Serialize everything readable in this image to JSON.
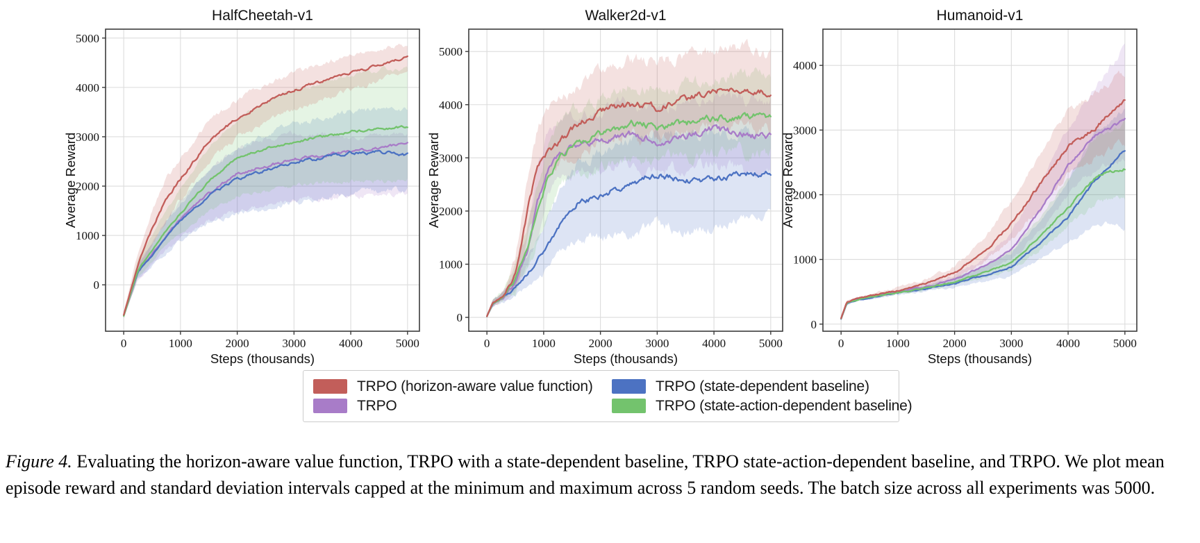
{
  "caption": {
    "label": "Figure 4.",
    "text": " Evaluating the horizon-aware value function, TRPO with a state-dependent baseline, TRPO state-action-dependent baseline, and TRPO. We plot mean episode reward and standard deviation intervals capped at the minimum and maximum across 5 random seeds. The batch size across all experiments was 5000."
  },
  "legend": {
    "items": [
      {
        "id": "trpo-horizon-aware",
        "label": "TRPO (horizon-aware value function)",
        "color": "#C25E5A"
      },
      {
        "id": "trpo-state-dependent",
        "label": "TRPO (state-dependent baseline)",
        "color": "#4C72C2"
      },
      {
        "id": "trpo",
        "label": "TRPO",
        "color": "#A87CC8"
      },
      {
        "id": "trpo-state-action-dependent",
        "label": "TRPO (state-action-dependent baseline)",
        "color": "#73C36D"
      }
    ]
  },
  "chart_data": [
    {
      "type": "line",
      "title": "HalfCheetah-v1",
      "xlabel": "Steps (thousands)",
      "ylabel": "Average Reward",
      "xlim": [
        -320,
        5210
      ],
      "ylim": [
        -940,
        5180
      ],
      "xticks": [
        0,
        1000,
        2000,
        3000,
        4000,
        5000
      ],
      "yticks": [
        0,
        1000,
        2000,
        3000,
        4000,
        5000
      ],
      "grid": true,
      "series": [
        {
          "id": "trpo",
          "label": "TRPO",
          "color": "#A87CC8",
          "noise": 48,
          "x": [
            0,
            250,
            500,
            750,
            1000,
            1500,
            2000,
            2500,
            3000,
            3500,
            4000,
            4500,
            5000
          ],
          "mean": [
            -620,
            280,
            620,
            1000,
            1340,
            1850,
            2250,
            2400,
            2550,
            2620,
            2700,
            2780,
            2850
          ],
          "lo": [
            -680,
            130,
            400,
            700,
            950,
            1300,
            1500,
            1600,
            1700,
            1750,
            1800,
            1820,
            1850
          ],
          "hi": [
            -560,
            450,
            850,
            1300,
            1700,
            2350,
            2750,
            2950,
            3050,
            3050,
            3000,
            3000,
            3050
          ]
        },
        {
          "id": "trpo-state-dependent",
          "label": "TRPO (state-dependent baseline)",
          "color": "#4C72C2",
          "noise": 50,
          "x": [
            0,
            250,
            500,
            750,
            1000,
            1500,
            2000,
            2500,
            3000,
            3500,
            4000,
            4500,
            5000
          ],
          "mean": [
            -620,
            270,
            600,
            950,
            1300,
            1800,
            2150,
            2330,
            2470,
            2580,
            2660,
            2690,
            2630
          ],
          "lo": [
            -680,
            120,
            380,
            650,
            900,
            1250,
            1450,
            1550,
            1650,
            1750,
            1850,
            1900,
            1950
          ],
          "hi": [
            -560,
            430,
            820,
            1250,
            1650,
            2300,
            2750,
            3050,
            3250,
            3400,
            3500,
            3550,
            3550
          ]
        },
        {
          "id": "trpo-state-action-dependent",
          "label": "TRPO (state-action-dependent baseline)",
          "color": "#73C36D",
          "noise": 42,
          "x": [
            0,
            250,
            500,
            750,
            1000,
            1500,
            2000,
            2500,
            3000,
            3500,
            4000,
            4500,
            5000
          ],
          "mean": [
            -630,
            300,
            700,
            1100,
            1450,
            2100,
            2580,
            2750,
            2900,
            3000,
            3100,
            3150,
            3200
          ],
          "lo": [
            -690,
            150,
            450,
            800,
            1050,
            1500,
            1800,
            1900,
            2000,
            2050,
            2100,
            2100,
            2150
          ],
          "hi": [
            -570,
            500,
            1000,
            1500,
            1950,
            2800,
            3350,
            3700,
            3950,
            4100,
            4250,
            4350,
            4400
          ]
        },
        {
          "id": "trpo-horizon-aware",
          "label": "TRPO (horizon-aware value function)",
          "color": "#C25E5A",
          "noise": 45,
          "x": [
            0,
            250,
            500,
            750,
            1000,
            1500,
            2000,
            2500,
            3000,
            3500,
            4000,
            4500,
            5000
          ],
          "mean": [
            -610,
            400,
            1150,
            1750,
            2150,
            2900,
            3380,
            3680,
            3940,
            4120,
            4300,
            4450,
            4620
          ],
          "lo": [
            -670,
            150,
            800,
            1350,
            1750,
            2500,
            3000,
            3300,
            3550,
            3750,
            3950,
            4150,
            4330
          ],
          "hi": [
            -550,
            650,
            1500,
            2150,
            2550,
            3300,
            3750,
            4050,
            4300,
            4500,
            4650,
            4780,
            4870
          ]
        }
      ]
    },
    {
      "type": "line",
      "title": "Walker2d-v1",
      "xlabel": "Steps (thousands)",
      "ylabel": "Average Reward",
      "xlim": [
        -320,
        5210
      ],
      "ylim": [
        -260,
        5420
      ],
      "xticks": [
        0,
        1000,
        2000,
        3000,
        4000,
        5000
      ],
      "yticks": [
        0,
        1000,
        2000,
        3000,
        4000,
        5000
      ],
      "grid": true,
      "series": [
        {
          "id": "trpo",
          "label": "TRPO",
          "color": "#A87CC8",
          "noise": 105,
          "x": [
            0,
            100,
            300,
            500,
            700,
            900,
            1100,
            1300,
            1600,
            2000,
            2500,
            3000,
            3500,
            4000,
            4500,
            5000
          ],
          "mean": [
            20,
            260,
            400,
            650,
            1200,
            2200,
            2900,
            3100,
            3250,
            3300,
            3450,
            3300,
            3400,
            3550,
            3450,
            3400
          ],
          "lo": [
            0,
            190,
            320,
            480,
            850,
            1600,
            2300,
            2600,
            2750,
            2800,
            2900,
            2700,
            2800,
            2900,
            2800,
            2700
          ],
          "hi": [
            50,
            330,
            490,
            900,
            1600,
            2800,
            3500,
            3700,
            3800,
            3900,
            4050,
            3950,
            4050,
            4200,
            4100,
            4050
          ]
        },
        {
          "id": "trpo-state-dependent",
          "label": "TRPO (state-dependent baseline)",
          "color": "#4C72C2",
          "noise": 90,
          "x": [
            0,
            100,
            300,
            500,
            700,
            900,
            1100,
            1300,
            1600,
            2000,
            2500,
            3000,
            3500,
            4000,
            4500,
            5000
          ],
          "mean": [
            20,
            250,
            380,
            550,
            800,
            1100,
            1400,
            1750,
            2150,
            2300,
            2500,
            2700,
            2550,
            2600,
            2700,
            2700
          ],
          "lo": [
            0,
            180,
            300,
            400,
            550,
            750,
            950,
            1200,
            1500,
            1500,
            1550,
            1800,
            1600,
            1700,
            1850,
            2000
          ],
          "hi": [
            50,
            320,
            460,
            750,
            1100,
            1550,
            1950,
            2400,
            2900,
            3100,
            3300,
            3500,
            3400,
            3400,
            3450,
            3400
          ]
        },
        {
          "id": "trpo-state-action-dependent",
          "label": "TRPO (state-action-dependent baseline)",
          "color": "#73C36D",
          "noise": 105,
          "x": [
            0,
            100,
            300,
            500,
            700,
            900,
            1100,
            1300,
            1600,
            2000,
            2500,
            3000,
            3500,
            4000,
            4500,
            5000
          ],
          "mean": [
            20,
            260,
            410,
            700,
            1250,
            2000,
            2700,
            3050,
            3250,
            3450,
            3650,
            3600,
            3650,
            3750,
            3800,
            3750
          ],
          "lo": [
            0,
            190,
            330,
            500,
            900,
            1450,
            2100,
            2500,
            2700,
            2850,
            3000,
            2950,
            3000,
            3100,
            3100,
            3050
          ],
          "hi": [
            50,
            330,
            500,
            1000,
            1700,
            2600,
            3300,
            3700,
            3900,
            4100,
            4350,
            4300,
            4350,
            4500,
            4550,
            4500
          ]
        },
        {
          "id": "trpo-horizon-aware",
          "label": "TRPO (horizon-aware value function)",
          "color": "#C25E5A",
          "noise": 105,
          "x": [
            0,
            100,
            300,
            500,
            700,
            900,
            1100,
            1300,
            1600,
            2000,
            2500,
            3000,
            3500,
            4000,
            4500,
            5000
          ],
          "mean": [
            20,
            270,
            420,
            800,
            1950,
            2850,
            3150,
            3350,
            3600,
            3900,
            4000,
            3950,
            4100,
            4250,
            4300,
            4200
          ],
          "lo": [
            0,
            200,
            330,
            550,
            1300,
            2300,
            2700,
            2900,
            3100,
            3300,
            3400,
            3350,
            3500,
            3600,
            3650,
            3500
          ],
          "hi": [
            50,
            340,
            520,
            1100,
            2500,
            3600,
            3900,
            4100,
            4300,
            4700,
            4900,
            4800,
            4900,
            5000,
            5050,
            4900
          ]
        }
      ]
    },
    {
      "type": "line",
      "title": "Humanoid-v1",
      "xlabel": "Steps (thousands)",
      "ylabel": "Average Reward",
      "xlim": [
        -320,
        5210
      ],
      "ylim": [
        -110,
        4560
      ],
      "xticks": [
        0,
        1000,
        2000,
        3000,
        4000,
        5000
      ],
      "yticks": [
        0,
        1000,
        2000,
        3000,
        4000
      ],
      "grid": true,
      "series": [
        {
          "id": "trpo",
          "label": "TRPO",
          "color": "#A87CC8",
          "noise": 50,
          "x": [
            0,
            100,
            300,
            500,
            1000,
            1500,
            2000,
            2500,
            3000,
            3500,
            4000,
            4500,
            5000
          ],
          "mean": [
            90,
            330,
            390,
            420,
            500,
            580,
            690,
            880,
            1150,
            1750,
            2450,
            2950,
            3150
          ],
          "lo": [
            80,
            310,
            370,
            400,
            475,
            545,
            630,
            780,
            1000,
            1450,
            2000,
            2400,
            2550
          ],
          "hi": [
            100,
            350,
            410,
            445,
            530,
            625,
            760,
            1000,
            1400,
            2200,
            3000,
            3700,
            4300
          ]
        },
        {
          "id": "trpo-state-dependent",
          "label": "TRPO (state-dependent baseline)",
          "color": "#4C72C2",
          "noise": 40,
          "x": [
            0,
            100,
            300,
            500,
            1000,
            1500,
            2000,
            2500,
            3000,
            3500,
            4000,
            4500,
            5000
          ],
          "mean": [
            80,
            315,
            375,
            405,
            480,
            545,
            625,
            750,
            880,
            1250,
            1650,
            2250,
            2680
          ],
          "lo": [
            70,
            295,
            355,
            385,
            455,
            510,
            570,
            660,
            750,
            1000,
            1250,
            1600,
            1500
          ],
          "hi": [
            95,
            340,
            400,
            435,
            515,
            590,
            700,
            880,
            1100,
            1600,
            2200,
            3000,
            3300
          ]
        },
        {
          "id": "trpo-state-action-dependent",
          "label": "TRPO (state-action-dependent baseline)",
          "color": "#73C36D",
          "noise": 40,
          "x": [
            0,
            100,
            300,
            500,
            1000,
            1500,
            2000,
            2500,
            3000,
            3500,
            4000,
            4500,
            5000
          ],
          "mean": [
            85,
            325,
            385,
            415,
            490,
            560,
            650,
            790,
            950,
            1350,
            1800,
            2300,
            2400
          ],
          "lo": [
            75,
            305,
            365,
            395,
            465,
            530,
            600,
            710,
            830,
            1150,
            1500,
            1900,
            1950
          ],
          "hi": [
            95,
            345,
            405,
            440,
            520,
            600,
            710,
            890,
            1150,
            1650,
            2250,
            2900,
            3100
          ]
        },
        {
          "id": "trpo-horizon-aware",
          "label": "TRPO (horizon-aware value function)",
          "color": "#C25E5A",
          "noise": 50,
          "x": [
            0,
            100,
            300,
            500,
            1000,
            1500,
            2000,
            2500,
            3000,
            3500,
            4000,
            4500,
            5000
          ],
          "mean": [
            90,
            340,
            400,
            430,
            520,
            630,
            790,
            1100,
            1550,
            2150,
            2750,
            3050,
            3480
          ],
          "lo": [
            80,
            320,
            380,
            410,
            490,
            580,
            700,
            950,
            1300,
            1800,
            2300,
            2600,
            2800
          ],
          "hi": [
            100,
            360,
            420,
            455,
            560,
            700,
            900,
            1300,
            1900,
            2600,
            3300,
            3600,
            3900
          ]
        }
      ]
    }
  ],
  "style": {
    "grid_color": "#DCDCDC",
    "spine_color": "#3b3b3b",
    "band_opacity": 0.19
  }
}
